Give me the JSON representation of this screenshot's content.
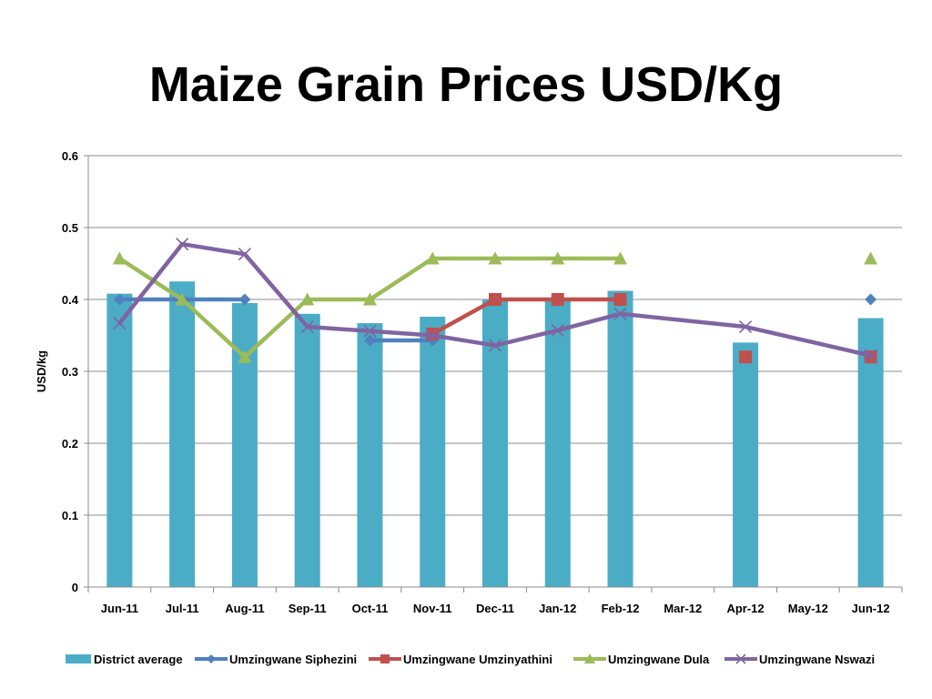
{
  "chart_data": {
    "type": "bar",
    "title": "Maize Grain Prices USD/Kg",
    "ylabel": "USD/kg",
    "xlabel": "",
    "ylim": [
      0,
      0.6
    ],
    "yticks": [
      0,
      0.1,
      0.2,
      0.3,
      0.4,
      0.5,
      0.6
    ],
    "ytick_labels": [
      "0",
      "0.1",
      "0.2",
      "0.3",
      "0.4",
      "0.5",
      "0.6"
    ],
    "grid": true,
    "legend_position": "bottom",
    "categories": [
      "Jun-11",
      "Jul-11",
      "Aug-11",
      "Sep-11",
      "Oct-11",
      "Nov-11",
      "Dec-11",
      "Jan-12",
      "Feb-12",
      "Mar-12",
      "Apr-12",
      "May-12",
      "Jun-12"
    ],
    "series": [
      {
        "name": "District average",
        "kind": "bar",
        "color": "#4BACC6",
        "values": [
          0.408,
          0.425,
          0.395,
          0.38,
          0.367,
          0.376,
          0.4,
          0.4,
          0.412,
          null,
          0.34,
          null,
          0.374
        ]
      },
      {
        "name": "Umzingwane Siphezini",
        "kind": "line",
        "marker": "diamond",
        "color": "#4F81BD",
        "values": [
          0.4,
          0.4,
          0.4,
          null,
          0.343,
          0.343,
          null,
          null,
          null,
          null,
          null,
          null,
          0.4
        ]
      },
      {
        "name": "Umzingwane Umzinyathini",
        "kind": "line",
        "marker": "square",
        "color": "#C0504D",
        "values": [
          null,
          null,
          null,
          null,
          null,
          0.352,
          0.4,
          0.4,
          0.4,
          null,
          0.32,
          null,
          0.32
        ]
      },
      {
        "name": "Umzingwane Dula",
        "kind": "line",
        "marker": "triangle",
        "color": "#9BBB59",
        "values": [
          0.457,
          0.4,
          0.32,
          0.4,
          0.4,
          0.457,
          0.457,
          0.457,
          0.457,
          null,
          null,
          null,
          0.457
        ]
      },
      {
        "name": "Umzingwane Nswazi",
        "kind": "line",
        "marker": "x",
        "color": "#8064A2",
        "connect_gaps": true,
        "values": [
          0.367,
          0.477,
          0.463,
          0.362,
          0.356,
          0.35,
          0.336,
          0.357,
          0.38,
          null,
          0.362,
          null,
          0.322
        ]
      }
    ]
  }
}
